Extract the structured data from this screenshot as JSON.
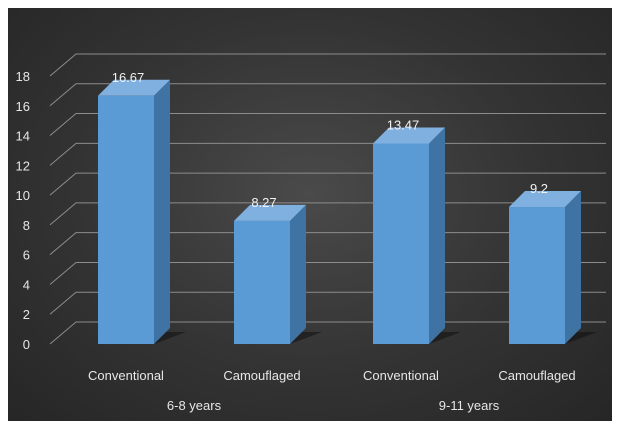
{
  "chart_data": {
    "type": "bar",
    "title": "",
    "xlabel": "",
    "ylabel": "",
    "ylim": [
      0,
      18
    ],
    "yticks": [
      "0",
      "2",
      "4",
      "6",
      "8",
      "10",
      "12",
      "14",
      "16",
      "18"
    ],
    "grid": true,
    "legend": "none",
    "groups": [
      {
        "label": "6-8 years",
        "bars": [
          {
            "category": "Conventional",
            "value": 16.67,
            "value_label": "16.67"
          },
          {
            "category": "Camouflaged",
            "value": 8.27,
            "value_label": "8.27"
          }
        ]
      },
      {
        "label": "9-11 years",
        "bars": [
          {
            "category": "Conventional",
            "value": 13.47,
            "value_label": "13.47"
          },
          {
            "category": "Camouflaged",
            "value": 9.2,
            "value_label": "9.2"
          }
        ]
      }
    ],
    "colors": {
      "bar_front": "#5b9bd5",
      "bar_side": "#3f73a3",
      "bar_top": "#7fb0e0",
      "gridline": "#8c8c8c",
      "background": "#333333",
      "text": "#e6e6e6"
    }
  }
}
